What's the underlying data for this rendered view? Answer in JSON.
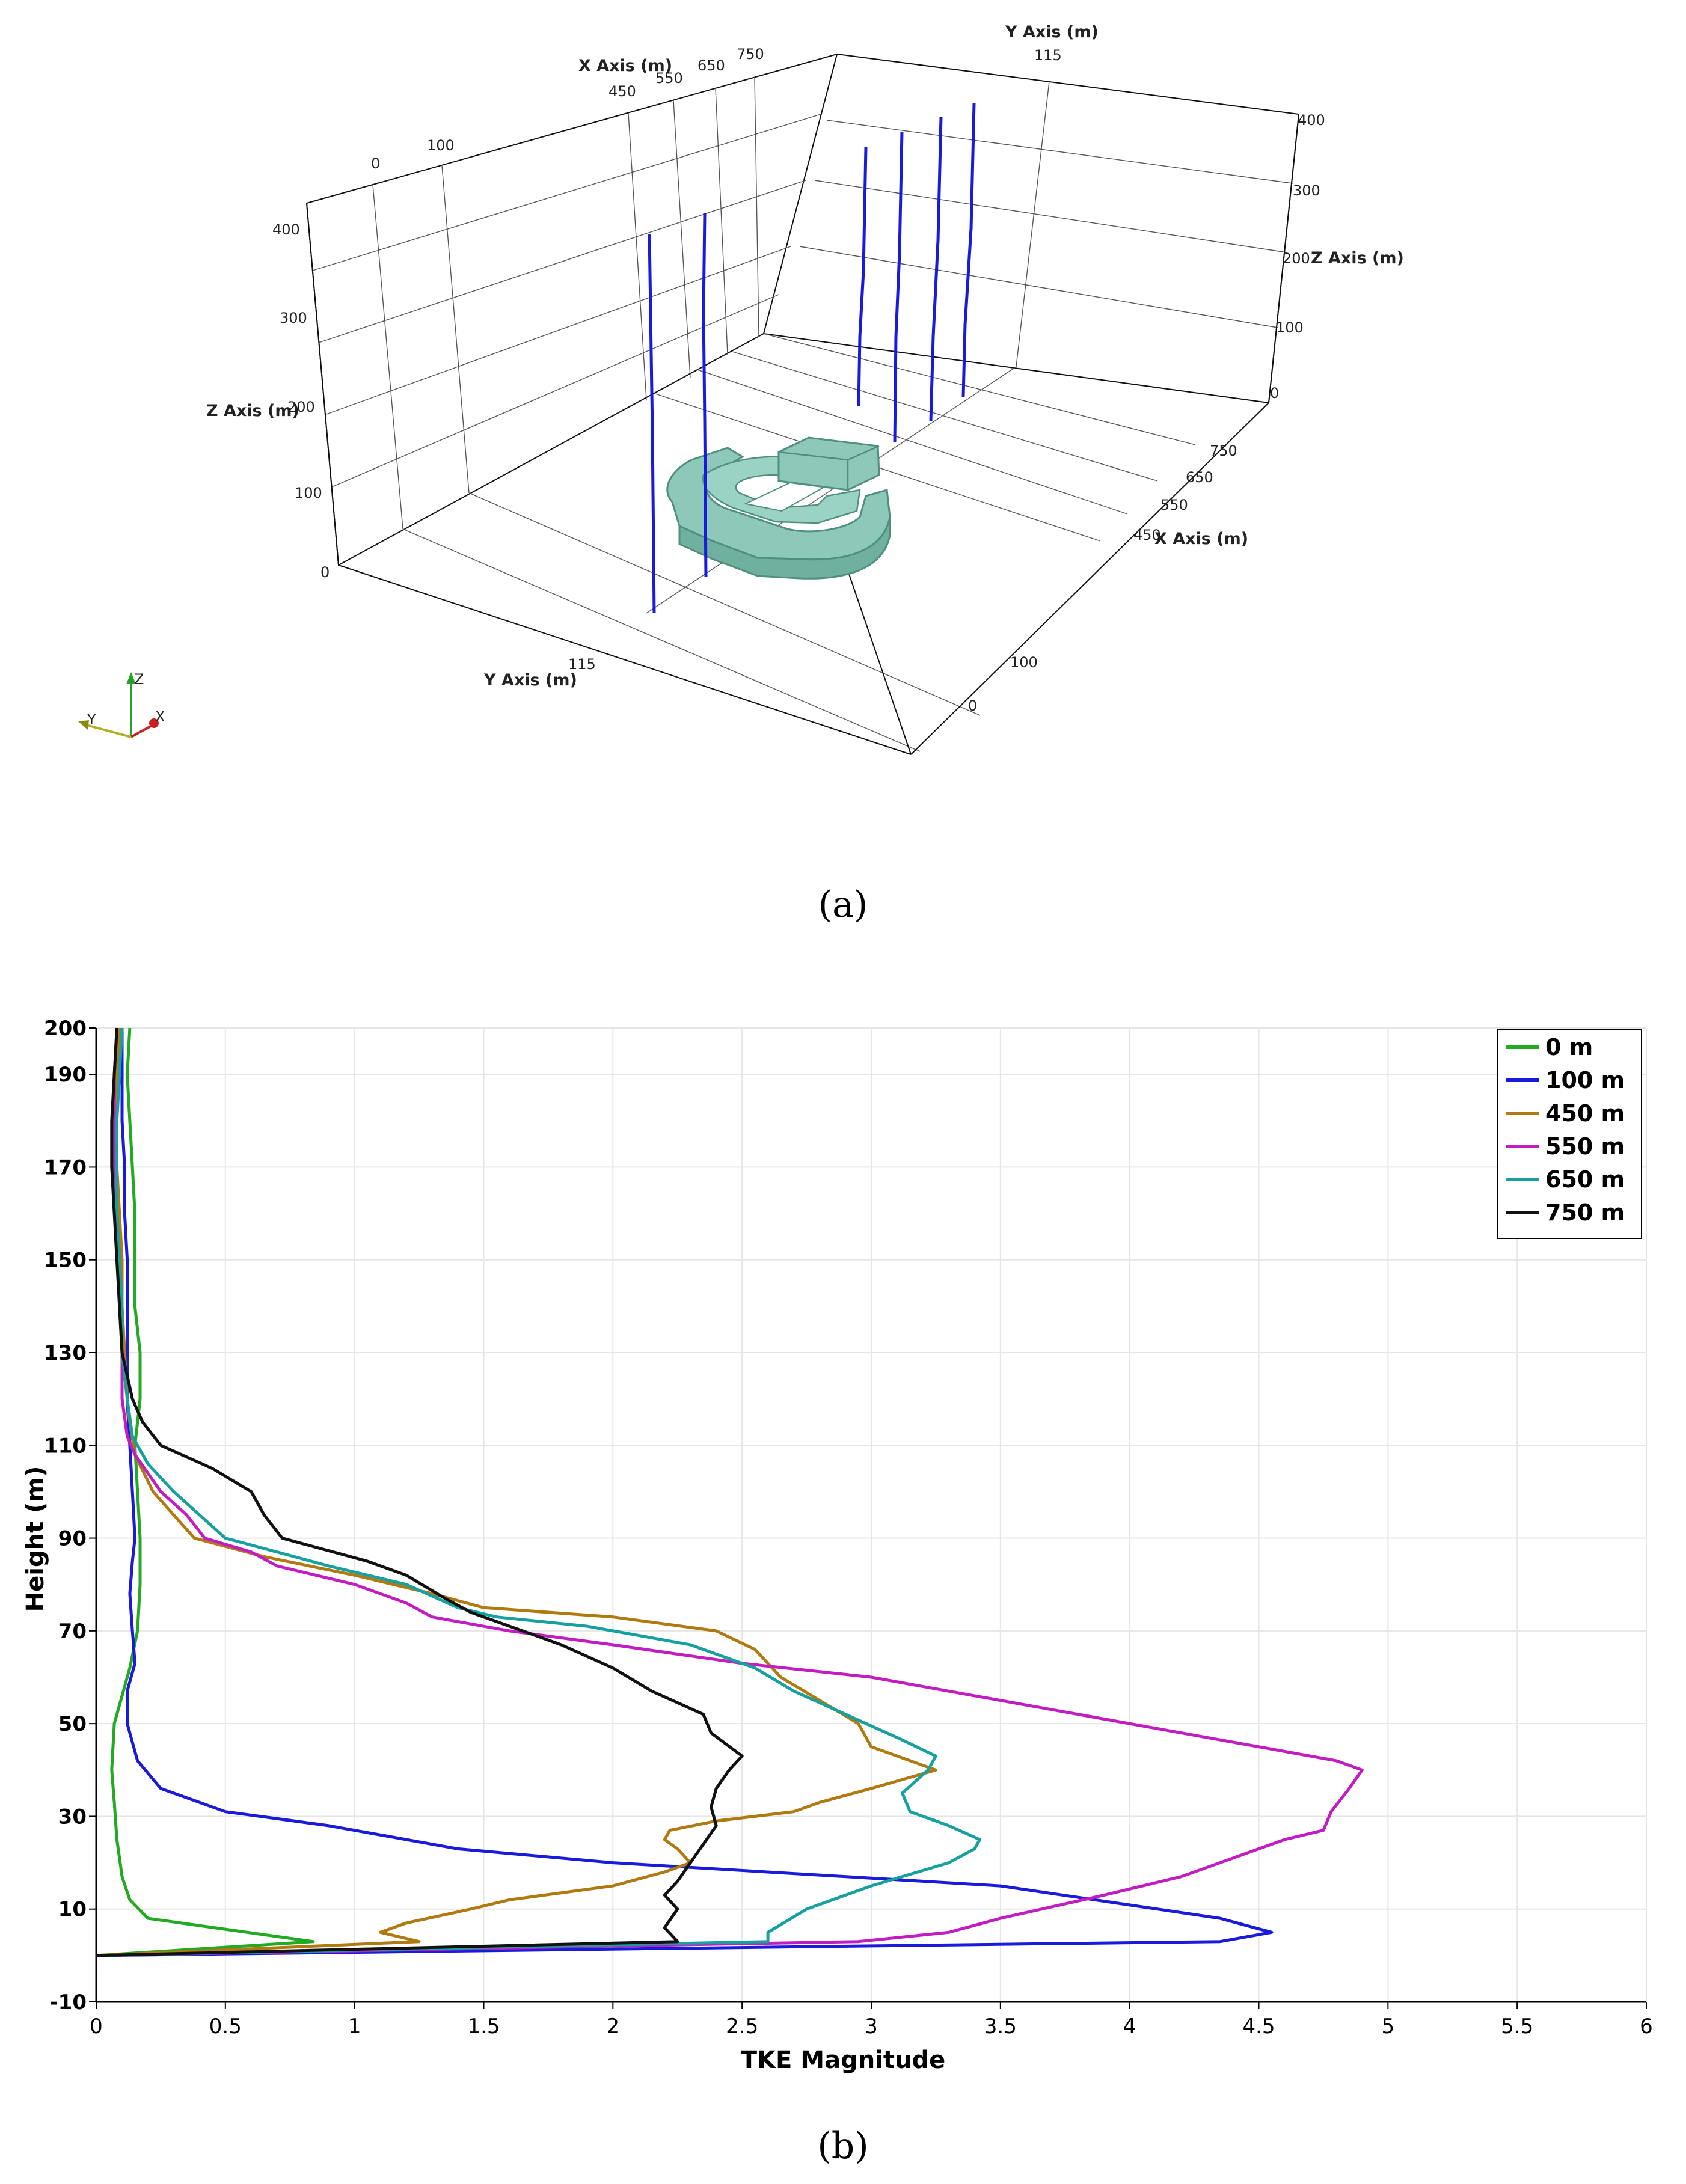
{
  "panel_a": {
    "caption": "(a)",
    "x_axis_title": "X Axis (m)",
    "y_axis_title": "Y Axis (m)",
    "z_axis_title": "Z Axis (m)",
    "x_ticks": [
      "450",
      "550",
      "650",
      "750"
    ],
    "y_ticks": [
      "0",
      "100",
      "115"
    ],
    "z_ticks": [
      "0",
      "100",
      "200",
      "300",
      "400"
    ],
    "orientation": {
      "z": "Z",
      "y": "Y",
      "x": "X"
    },
    "colors": {
      "probe": "#1a1adc",
      "building": "#8dc8b8",
      "building_edge": "#4f8f80"
    }
  },
  "panel_b": {
    "caption": "(b)",
    "chart_data": {
      "type": "line",
      "xlabel": "TKE Magnitude",
      "ylabel": "Height (m)",
      "xlim": [
        0,
        6
      ],
      "ylim": [
        -10,
        200
      ],
      "x_ticks": [
        0,
        0.5,
        1,
        1.5,
        2,
        2.5,
        3,
        3.5,
        4,
        4.5,
        5,
        5.5,
        6
      ],
      "y_ticks": [
        -10,
        10,
        30,
        50,
        70,
        90,
        110,
        130,
        150,
        170,
        190,
        200
      ],
      "y_tick_labels": [
        "-10",
        "10",
        "30",
        "50",
        "70",
        "90",
        "110",
        "130",
        "150",
        "170",
        "190",
        "200"
      ],
      "x_tick_labels": [
        "0",
        "0.5",
        "1",
        "1.5",
        "2",
        "2.5",
        "3",
        "3.5",
        "4",
        "4.5",
        "5",
        "5.5",
        "6"
      ],
      "grid": true,
      "legend_position": "top-right",
      "series": [
        {
          "name": "0 m",
          "color": "#22aa22",
          "points": [
            [
              0,
              0
            ],
            [
              0.84,
              3
            ],
            [
              0.2,
              8
            ],
            [
              0.13,
              12
            ],
            [
              0.1,
              17
            ],
            [
              0.08,
              25
            ],
            [
              0.07,
              33
            ],
            [
              0.06,
              40
            ],
            [
              0.07,
              50
            ],
            [
              0.1,
              56
            ],
            [
              0.13,
              62
            ],
            [
              0.16,
              70
            ],
            [
              0.17,
              80
            ],
            [
              0.17,
              90
            ],
            [
              0.16,
              100
            ],
            [
              0.15,
              110
            ],
            [
              0.17,
              120
            ],
            [
              0.17,
              130
            ],
            [
              0.15,
              140
            ],
            [
              0.15,
              150
            ],
            [
              0.15,
              160
            ],
            [
              0.14,
              170
            ],
            [
              0.13,
              180
            ],
            [
              0.12,
              190
            ],
            [
              0.13,
              200
            ]
          ]
        },
        {
          "name": "100 m",
          "color": "#1a1adc",
          "points": [
            [
              0,
              0
            ],
            [
              4.35,
              3
            ],
            [
              4.55,
              5
            ],
            [
              4.35,
              8
            ],
            [
              3.5,
              15
            ],
            [
              2.0,
              20
            ],
            [
              1.4,
              23
            ],
            [
              0.9,
              28
            ],
            [
              0.5,
              31
            ],
            [
              0.25,
              36
            ],
            [
              0.16,
              42
            ],
            [
              0.12,
              50
            ],
            [
              0.12,
              57
            ],
            [
              0.15,
              63
            ],
            [
              0.14,
              70
            ],
            [
              0.13,
              78
            ],
            [
              0.14,
              85
            ],
            [
              0.15,
              90
            ],
            [
              0.14,
              100
            ],
            [
              0.13,
              110
            ],
            [
              0.12,
              120
            ],
            [
              0.12,
              130
            ],
            [
              0.12,
              140
            ],
            [
              0.12,
              150
            ],
            [
              0.11,
              160
            ],
            [
              0.11,
              170
            ],
            [
              0.1,
              180
            ],
            [
              0.1,
              190
            ],
            [
              0.1,
              200
            ]
          ]
        },
        {
          "name": "450 m",
          "color": "#b07a10",
          "points": [
            [
              0,
              0
            ],
            [
              1.25,
              3
            ],
            [
              1.1,
              5
            ],
            [
              1.2,
              7
            ],
            [
              1.45,
              10
            ],
            [
              1.6,
              12
            ],
            [
              2.0,
              15
            ],
            [
              2.2,
              18
            ],
            [
              2.3,
              20
            ],
            [
              2.25,
              23
            ],
            [
              2.2,
              25
            ],
            [
              2.22,
              27
            ],
            [
              2.4,
              29
            ],
            [
              2.7,
              31
            ],
            [
              2.8,
              33
            ],
            [
              3.0,
              36
            ],
            [
              3.25,
              40
            ],
            [
              3.1,
              43
            ],
            [
              3.0,
              45
            ],
            [
              2.95,
              50
            ],
            [
              2.8,
              55
            ],
            [
              2.65,
              60
            ],
            [
              2.6,
              63
            ],
            [
              2.55,
              66
            ],
            [
              2.4,
              70
            ],
            [
              2.0,
              73
            ],
            [
              1.5,
              75
            ],
            [
              1.3,
              78
            ],
            [
              1.0,
              82
            ],
            [
              0.65,
              86
            ],
            [
              0.38,
              90
            ],
            [
              0.3,
              95
            ],
            [
              0.22,
              100
            ],
            [
              0.15,
              108
            ],
            [
              0.13,
              115
            ],
            [
              0.12,
              120
            ],
            [
              0.11,
              130
            ],
            [
              0.1,
              140
            ],
            [
              0.1,
              150
            ],
            [
              0.09,
              160
            ],
            [
              0.08,
              170
            ],
            [
              0.08,
              180
            ],
            [
              0.08,
              190
            ],
            [
              0.09,
              200
            ]
          ]
        },
        {
          "name": "550 m",
          "color": "#c21cc2",
          "points": [
            [
              0,
              0
            ],
            [
              2.95,
              3
            ],
            [
              3.3,
              5
            ],
            [
              3.5,
              8
            ],
            [
              3.9,
              13
            ],
            [
              4.2,
              17
            ],
            [
              4.45,
              22
            ],
            [
              4.6,
              25
            ],
            [
              4.75,
              27
            ],
            [
              4.78,
              31
            ],
            [
              4.85,
              36
            ],
            [
              4.9,
              40
            ],
            [
              4.8,
              42
            ],
            [
              4.5,
              45
            ],
            [
              4.2,
              48
            ],
            [
              3.8,
              52
            ],
            [
              3.4,
              56
            ],
            [
              3.0,
              60
            ],
            [
              2.5,
              63
            ],
            [
              2.0,
              67
            ],
            [
              1.6,
              70
            ],
            [
              1.3,
              73
            ],
            [
              1.2,
              76
            ],
            [
              1.0,
              80
            ],
            [
              0.7,
              84
            ],
            [
              0.6,
              87
            ],
            [
              0.42,
              90
            ],
            [
              0.35,
              95
            ],
            [
              0.25,
              100
            ],
            [
              0.15,
              108
            ],
            [
              0.12,
              112
            ],
            [
              0.1,
              120
            ],
            [
              0.1,
              130
            ],
            [
              0.09,
              140
            ],
            [
              0.09,
              150
            ],
            [
              0.08,
              160
            ],
            [
              0.07,
              170
            ],
            [
              0.07,
              180
            ],
            [
              0.07,
              190
            ],
            [
              0.08,
              200
            ]
          ]
        },
        {
          "name": "650 m",
          "color": "#17a0a0",
          "points": [
            [
              0,
              0
            ],
            [
              2.6,
              3
            ],
            [
              2.6,
              5
            ],
            [
              2.75,
              10
            ],
            [
              3.0,
              15
            ],
            [
              3.3,
              20
            ],
            [
              3.4,
              23
            ],
            [
              3.42,
              25
            ],
            [
              3.3,
              28
            ],
            [
              3.15,
              31
            ],
            [
              3.12,
              35
            ],
            [
              3.22,
              40
            ],
            [
              3.25,
              43
            ],
            [
              3.1,
              47
            ],
            [
              2.9,
              52
            ],
            [
              2.7,
              57
            ],
            [
              2.55,
              62
            ],
            [
              2.3,
              67
            ],
            [
              1.9,
              71
            ],
            [
              1.55,
              73
            ],
            [
              1.4,
              75
            ],
            [
              1.2,
              80
            ],
            [
              0.9,
              84
            ],
            [
              0.7,
              87
            ],
            [
              0.5,
              90
            ],
            [
              0.4,
              95
            ],
            [
              0.3,
              100
            ],
            [
              0.2,
              106
            ],
            [
              0.14,
              112
            ],
            [
              0.12,
              120
            ],
            [
              0.1,
              130
            ],
            [
              0.1,
              140
            ],
            [
              0.09,
              150
            ],
            [
              0.08,
              160
            ],
            [
              0.08,
              170
            ],
            [
              0.08,
              180
            ],
            [
              0.09,
              190
            ],
            [
              0.1,
              200
            ]
          ]
        },
        {
          "name": "750 m",
          "color": "#111111",
          "points": [
            [
              0,
              0
            ],
            [
              2.25,
              3
            ],
            [
              2.2,
              6
            ],
            [
              2.25,
              10
            ],
            [
              2.2,
              13
            ],
            [
              2.25,
              16
            ],
            [
              2.3,
              20
            ],
            [
              2.35,
              24
            ],
            [
              2.4,
              28
            ],
            [
              2.38,
              32
            ],
            [
              2.4,
              36
            ],
            [
              2.45,
              40
            ],
            [
              2.5,
              43
            ],
            [
              2.38,
              48
            ],
            [
              2.35,
              52
            ],
            [
              2.15,
              57
            ],
            [
              2.0,
              62
            ],
            [
              1.8,
              67
            ],
            [
              1.6,
              71
            ],
            [
              1.45,
              74
            ],
            [
              1.35,
              77
            ],
            [
              1.2,
              82
            ],
            [
              1.05,
              85
            ],
            [
              0.72,
              90
            ],
            [
              0.65,
              95
            ],
            [
              0.6,
              100
            ],
            [
              0.45,
              105
            ],
            [
              0.25,
              110
            ],
            [
              0.18,
              115
            ],
            [
              0.14,
              120
            ],
            [
              0.12,
              125
            ],
            [
              0.1,
              130
            ],
            [
              0.09,
              140
            ],
            [
              0.08,
              150
            ],
            [
              0.07,
              160
            ],
            [
              0.06,
              170
            ],
            [
              0.06,
              180
            ],
            [
              0.07,
              190
            ],
            [
              0.08,
              200
            ]
          ]
        }
      ]
    }
  }
}
